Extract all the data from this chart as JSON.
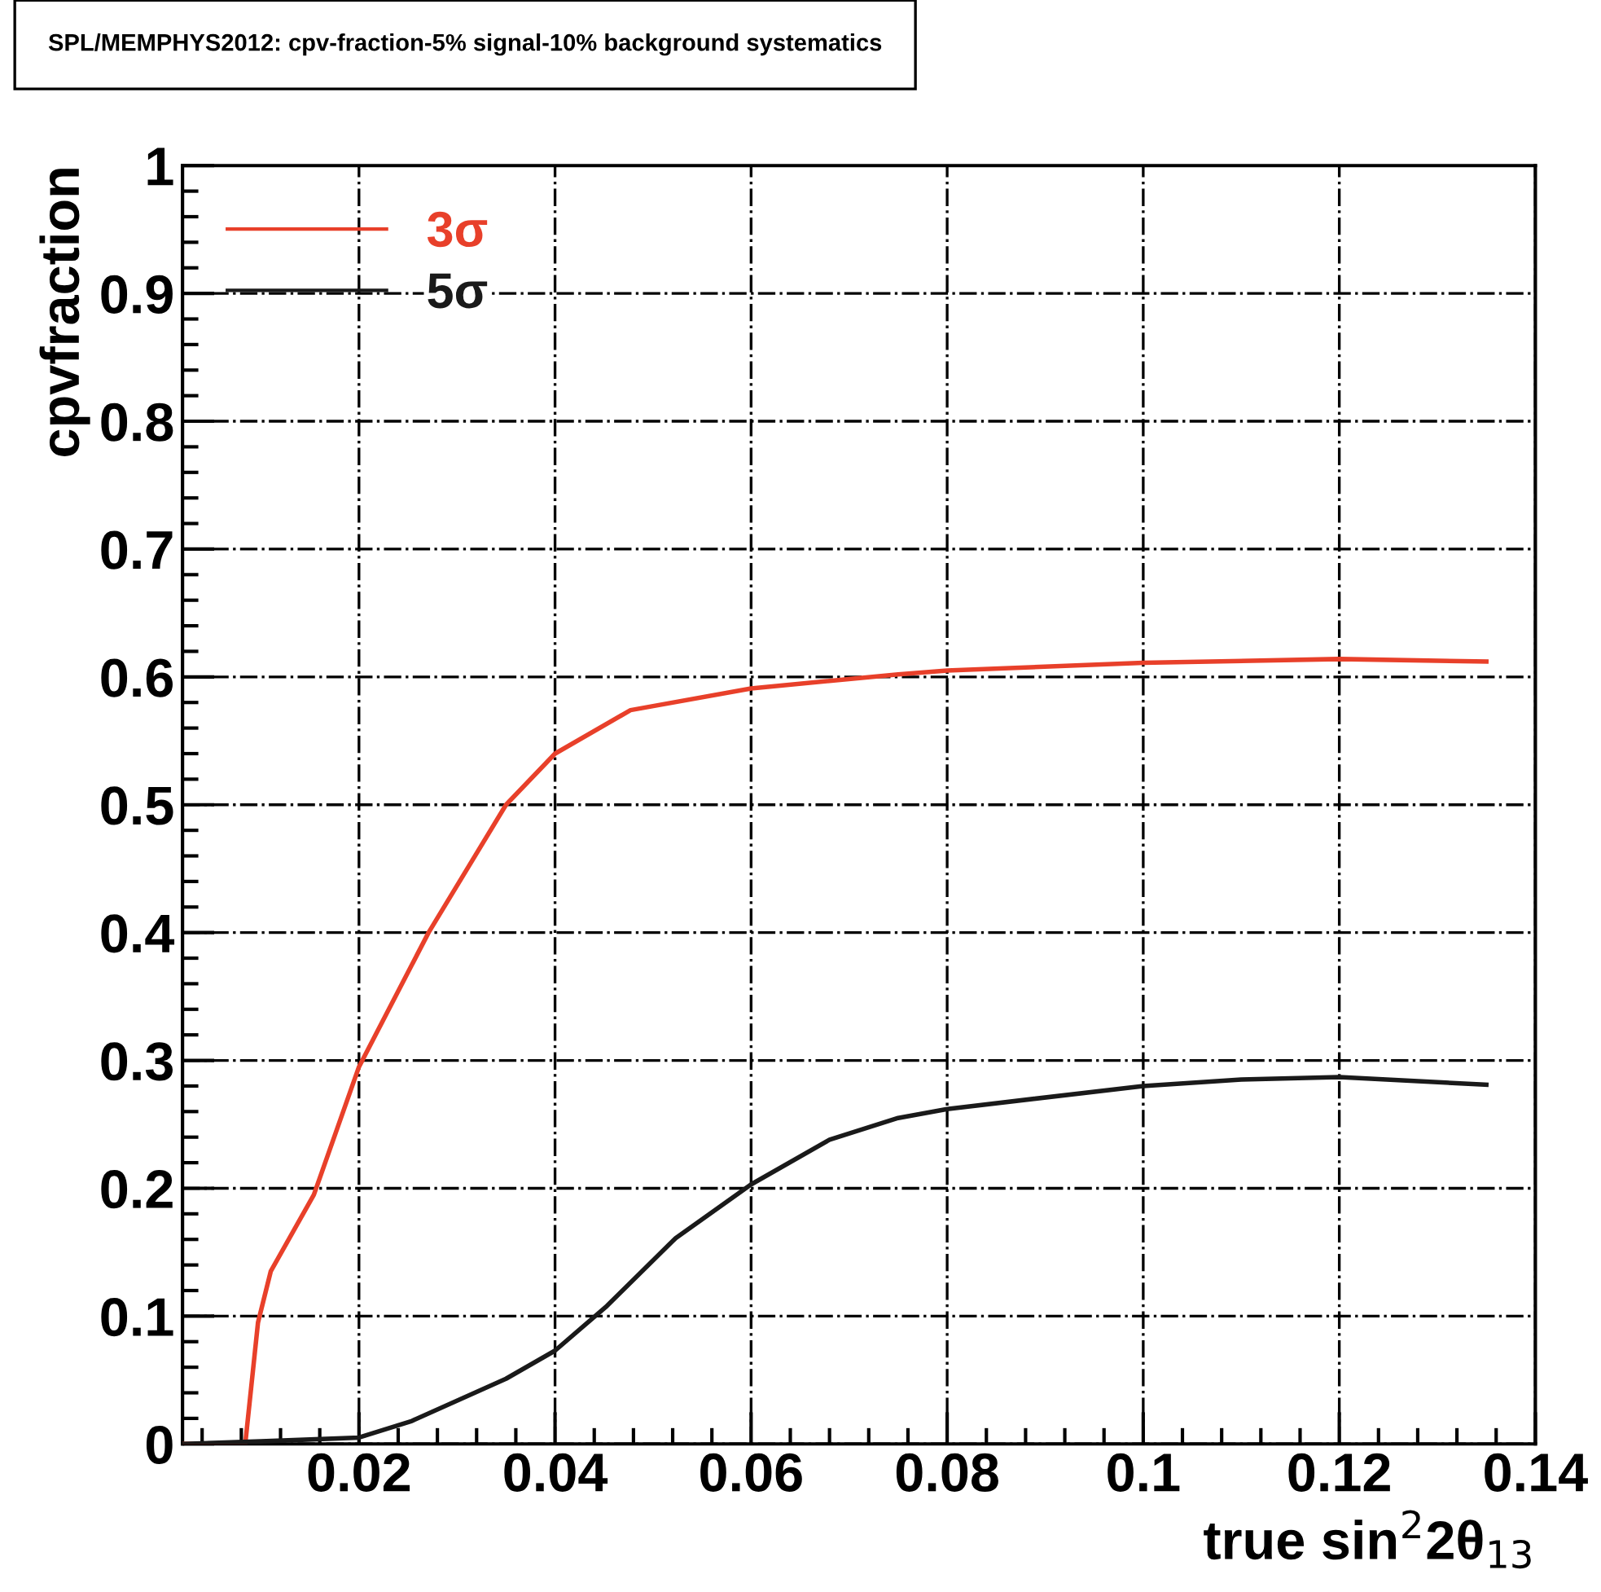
{
  "chart_data": {
    "type": "line",
    "title": "SPL/MEMPHYS2012: cpv-fraction-5% signal-10% background systematics",
    "xlabel": "true sin$^{2}$2θ$_{13}$",
    "ylabel": "cpvfraction",
    "series": [
      {
        "name": "3σ",
        "color": "#e8402a",
        "x": [
          0.002,
          0.0084,
          0.0097,
          0.011,
          0.0154,
          0.02,
          0.0271,
          0.035,
          0.04,
          0.0477,
          0.06,
          0.075,
          0.08,
          0.1,
          0.12,
          0.135
        ],
        "values": [
          0.0,
          0.0,
          0.095,
          0.135,
          0.195,
          0.295,
          0.4,
          0.5,
          0.54,
          0.574,
          0.591,
          0.602,
          0.605,
          0.611,
          0.614,
          0.612
        ]
      },
      {
        "name": "5σ",
        "color": "#1a1a1a",
        "x": [
          0.002,
          0.01,
          0.02,
          0.0254,
          0.035,
          0.04,
          0.0453,
          0.0523,
          0.06,
          0.068,
          0.075,
          0.08,
          0.1,
          0.11,
          0.12,
          0.135
        ],
        "values": [
          0.0,
          0.002,
          0.005,
          0.018,
          0.051,
          0.073,
          0.108,
          0.161,
          0.203,
          0.238,
          0.255,
          0.262,
          0.28,
          0.285,
          0.287,
          0.281
        ]
      }
    ],
    "xlim": [
      0.002,
      0.14
    ],
    "ylim": [
      0,
      1
    ],
    "xticks": [
      0.02,
      0.04,
      0.06,
      0.08,
      {
        "value": 0.1,
        "label": "0.1"
      },
      0.12,
      0.14
    ],
    "yticks": [
      0,
      0.1,
      0.2,
      0.3,
      0.4,
      0.5,
      0.6,
      0.7,
      0.8,
      0.9,
      1
    ],
    "grid": true,
    "legend": "top left",
    "marker": "none",
    "line_style": "solid"
  }
}
